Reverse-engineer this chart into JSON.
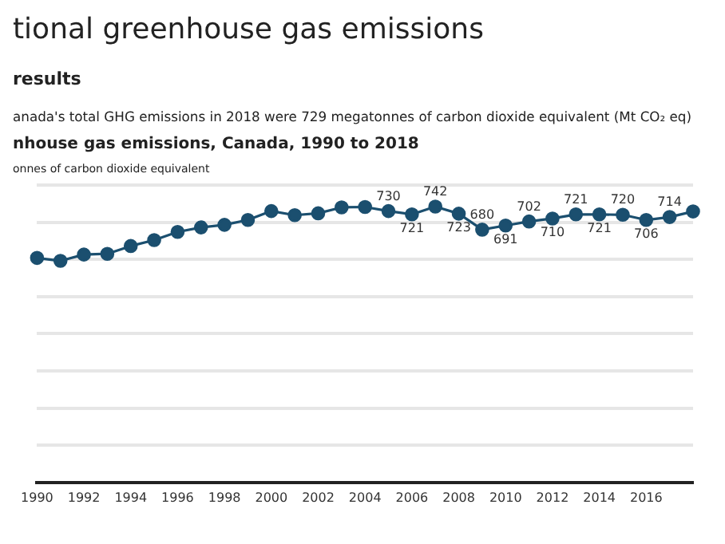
{
  "chart_data": {
    "type": "line",
    "title": "tional greenhouse gas emissions",
    "subtitle": "nhouse gas emissions, Canada, 1990 to 2018",
    "ylabel": "onnes of carbon dioxide equivalent",
    "annotations": [
      "results",
      "anada's total GHG emissions in 2018 were 729 megatonnes of carbon dioxide equivalent (Mt CO₂ eq)"
    ],
    "categories": [
      "1990",
      null,
      "1992",
      null,
      "1994",
      null,
      "1996",
      null,
      "1998",
      null,
      "2000",
      null,
      "2002",
      null,
      "2004",
      null,
      "2006",
      null,
      "2008",
      null,
      "2010",
      null,
      "2012",
      null,
      "2014",
      null,
      "2016",
      null,
      null
    ],
    "series": [
      {
        "color": "#1b4f6f",
        "values": [
          604,
          596,
          613,
          615,
          636,
          652,
          674,
          686,
          693,
          706,
          730,
          719,
          724,
          740,
          741,
          730,
          721,
          742,
          723,
          680,
          691,
          702,
          710,
          721,
          721,
          720,
          706,
          714,
          729
        ],
        "value_labels": [
          null,
          null,
          null,
          null,
          null,
          null,
          null,
          null,
          null,
          null,
          null,
          null,
          null,
          null,
          null,
          "730",
          "721",
          "742",
          "723",
          "680",
          "691",
          "702",
          "710",
          "721",
          "721",
          "720",
          "706",
          "714",
          null
        ]
      }
    ],
    "ylim": [
      0,
      800
    ],
    "yticks": [
      {
        "value": 0,
        "label": null
      },
      {
        "value": 100,
        "label": null
      },
      {
        "value": 200,
        "label": null
      },
      {
        "value": 300,
        "label": null
      },
      {
        "value": 400,
        "label": null
      },
      {
        "value": 500,
        "label": null
      },
      {
        "value": 600,
        "label": null
      },
      {
        "value": 700,
        "label": null
      },
      {
        "value": 800,
        "label": null
      }
    ],
    "tick_labels": "x",
    "grid": "y",
    "marker": "circle",
    "line_style": "solid"
  }
}
